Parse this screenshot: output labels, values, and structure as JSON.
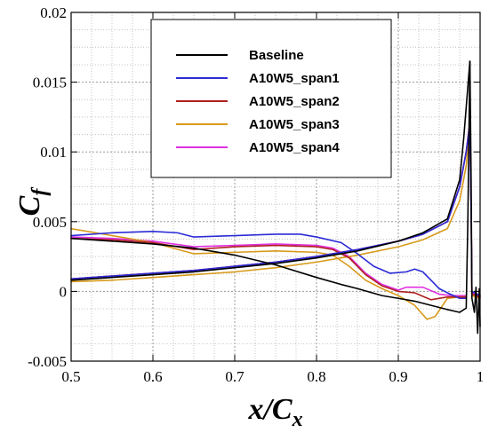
{
  "chart_data": {
    "type": "line",
    "xlabel": {
      "main": "x/C",
      "sub": "x"
    },
    "ylabel": {
      "main": "C",
      "sub": "f"
    },
    "xlim": [
      0.5,
      1.0
    ],
    "ylim": [
      -0.005,
      0.02
    ],
    "x_ticks": [
      0.5,
      0.6,
      0.7,
      0.8,
      0.9,
      1.0
    ],
    "x_tick_labels": [
      "0.5",
      "0.6",
      "0.7",
      "0.8",
      "0.9",
      "1"
    ],
    "y_ticks": [
      -0.005,
      0,
      0.005,
      0.01,
      0.015,
      0.02
    ],
    "y_tick_labels": [
      "-0.005",
      "0",
      "0.005",
      "0.01",
      "0.015",
      "0.02"
    ],
    "grid": true,
    "grid_style": "dotted",
    "legend_position": "top-center",
    "series": [
      {
        "name": "Baseline",
        "color": "#000000",
        "branches": [
          [
            [
              0.5,
              0.0038
            ],
            [
              0.55,
              0.0036
            ],
            [
              0.6,
              0.0034
            ],
            [
              0.65,
              0.0031
            ],
            [
              0.7,
              0.0026
            ],
            [
              0.75,
              0.0019
            ],
            [
              0.8,
              0.001
            ],
            [
              0.83,
              0.0005
            ],
            [
              0.85,
              0.0002
            ],
            [
              0.88,
              -0.0003
            ],
            [
              0.9,
              -0.0005
            ],
            [
              0.92,
              -0.0007
            ],
            [
              0.94,
              -0.001
            ],
            [
              0.96,
              -0.0013
            ],
            [
              0.975,
              -0.0015
            ],
            [
              0.983,
              -0.0012
            ],
            [
              0.985,
              0.005
            ],
            [
              0.9875,
              0.0165
            ]
          ],
          [
            [
              0.5,
              0.0008
            ],
            [
              0.55,
              0.001
            ],
            [
              0.6,
              0.0012
            ],
            [
              0.65,
              0.0014
            ],
            [
              0.7,
              0.0017
            ],
            [
              0.75,
              0.002
            ],
            [
              0.8,
              0.0024
            ],
            [
              0.85,
              0.0029
            ],
            [
              0.9,
              0.0036
            ],
            [
              0.93,
              0.0042
            ],
            [
              0.96,
              0.0052
            ],
            [
              0.975,
              0.008
            ],
            [
              0.98,
              0.011
            ],
            [
              0.9875,
              0.0165
            ],
            [
              0.989,
              0.008
            ],
            [
              0.99,
              -0.0005
            ],
            [
              0.993,
              -0.0015
            ],
            [
              0.995,
              0.0003
            ],
            [
              0.997,
              -0.003
            ],
            [
              0.999,
              0.0002
            ],
            [
              1.0,
              -0.0025
            ]
          ]
        ]
      },
      {
        "name": "A10W5_span1",
        "color": "#2b2bd6",
        "branches": [
          [
            [
              0.5,
              0.004
            ],
            [
              0.55,
              0.0042
            ],
            [
              0.6,
              0.0043
            ],
            [
              0.63,
              0.0042
            ],
            [
              0.65,
              0.0039
            ],
            [
              0.7,
              0.004
            ],
            [
              0.75,
              0.0041
            ],
            [
              0.78,
              0.0041
            ],
            [
              0.8,
              0.0039
            ],
            [
              0.83,
              0.0035
            ],
            [
              0.85,
              0.0027
            ],
            [
              0.87,
              0.0018
            ],
            [
              0.89,
              0.0013
            ],
            [
              0.91,
              0.0014
            ],
            [
              0.92,
              0.0016
            ],
            [
              0.93,
              0.0014
            ],
            [
              0.94,
              0.0008
            ],
            [
              0.95,
              0.0002
            ],
            [
              0.96,
              -0.0001
            ],
            [
              0.975,
              -0.0005
            ],
            [
              0.983,
              -0.0005
            ]
          ],
          [
            [
              0.5,
              0.0009
            ],
            [
              0.55,
              0.0011
            ],
            [
              0.6,
              0.0013
            ],
            [
              0.65,
              0.0015
            ],
            [
              0.7,
              0.0018
            ],
            [
              0.75,
              0.0021
            ],
            [
              0.8,
              0.0025
            ],
            [
              0.85,
              0.003
            ],
            [
              0.9,
              0.0036
            ],
            [
              0.93,
              0.0041
            ],
            [
              0.96,
              0.005
            ],
            [
              0.975,
              0.0075
            ],
            [
              0.983,
              0.01
            ],
            [
              0.9875,
              0.012
            ],
            [
              0.989,
              0.006
            ],
            [
              0.99,
              0.0
            ],
            [
              1.0,
              -0.0003
            ]
          ]
        ]
      },
      {
        "name": "A10W5_span2",
        "color": "#b02020",
        "branches": [
          [
            [
              0.5,
              0.0038
            ],
            [
              0.55,
              0.0037
            ],
            [
              0.6,
              0.0035
            ],
            [
              0.65,
              0.003
            ],
            [
              0.7,
              0.0032
            ],
            [
              0.75,
              0.0033
            ],
            [
              0.8,
              0.0032
            ],
            [
              0.82,
              0.003
            ],
            [
              0.84,
              0.0024
            ],
            [
              0.86,
              0.0012
            ],
            [
              0.88,
              0.0004
            ],
            [
              0.9,
              0.0
            ],
            [
              0.92,
              -0.0001
            ],
            [
              0.94,
              -0.0006
            ],
            [
              0.96,
              -0.0004
            ],
            [
              0.975,
              -0.0004
            ],
            [
              0.983,
              -0.0004
            ]
          ],
          [
            [
              0.5,
              0.0009
            ],
            [
              0.55,
              0.0011
            ],
            [
              0.6,
              0.0013
            ],
            [
              0.65,
              0.0015
            ],
            [
              0.7,
              0.0018
            ],
            [
              0.75,
              0.0021
            ],
            [
              0.8,
              0.0025
            ],
            [
              0.85,
              0.003
            ],
            [
              0.9,
              0.0036
            ],
            [
              0.93,
              0.0041
            ],
            [
              0.96,
              0.005
            ],
            [
              0.975,
              0.0075
            ],
            [
              0.983,
              0.01
            ],
            [
              0.9875,
              0.0121
            ],
            [
              0.989,
              0.006
            ],
            [
              0.99,
              -0.0002
            ],
            [
              1.0,
              -0.0004
            ]
          ]
        ]
      },
      {
        "name": "A10W5_span3",
        "color": "#d89a1a",
        "branches": [
          [
            [
              0.5,
              0.0045
            ],
            [
              0.55,
              0.004
            ],
            [
              0.6,
              0.0035
            ],
            [
              0.65,
              0.0027
            ],
            [
              0.7,
              0.0028
            ],
            [
              0.75,
              0.0029
            ],
            [
              0.8,
              0.0028
            ],
            [
              0.82,
              0.0026
            ],
            [
              0.84,
              0.0018
            ],
            [
              0.86,
              0.0008
            ],
            [
              0.88,
              0.0002
            ],
            [
              0.9,
              -0.0003
            ],
            [
              0.92,
              -0.001
            ],
            [
              0.935,
              -0.002
            ],
            [
              0.945,
              -0.0018
            ],
            [
              0.96,
              -0.0005
            ],
            [
              0.975,
              -0.0004
            ],
            [
              0.983,
              -0.0004
            ]
          ],
          [
            [
              0.5,
              0.0007
            ],
            [
              0.55,
              0.0008
            ],
            [
              0.6,
              0.001
            ],
            [
              0.65,
              0.0012
            ],
            [
              0.7,
              0.0014
            ],
            [
              0.75,
              0.0017
            ],
            [
              0.8,
              0.0021
            ],
            [
              0.85,
              0.0026
            ],
            [
              0.9,
              0.0032
            ],
            [
              0.93,
              0.0037
            ],
            [
              0.96,
              0.0045
            ],
            [
              0.975,
              0.0065
            ],
            [
              0.983,
              0.009
            ],
            [
              0.9875,
              0.0118
            ],
            [
              0.989,
              0.006
            ],
            [
              0.99,
              -0.0003
            ],
            [
              1.0,
              -0.0005
            ]
          ]
        ]
      },
      {
        "name": "A10W5_span4",
        "color": "#e030e0",
        "branches": [
          [
            [
              0.5,
              0.0039
            ],
            [
              0.55,
              0.0038
            ],
            [
              0.6,
              0.0036
            ],
            [
              0.65,
              0.0032
            ],
            [
              0.7,
              0.0033
            ],
            [
              0.75,
              0.0034
            ],
            [
              0.8,
              0.0033
            ],
            [
              0.82,
              0.0031
            ],
            [
              0.84,
              0.0025
            ],
            [
              0.86,
              0.0013
            ],
            [
              0.88,
              0.0005
            ],
            [
              0.9,
              0.0001
            ],
            [
              0.91,
              0.0003
            ],
            [
              0.93,
              0.0003
            ],
            [
              0.95,
              -0.0002
            ],
            [
              0.965,
              -0.0003
            ],
            [
              0.975,
              -0.0003
            ],
            [
              0.983,
              -0.0003
            ]
          ],
          [
            [
              0.5,
              0.0009
            ],
            [
              0.55,
              0.0011
            ],
            [
              0.6,
              0.0013
            ],
            [
              0.65,
              0.0015
            ],
            [
              0.7,
              0.0018
            ],
            [
              0.75,
              0.0021
            ],
            [
              0.8,
              0.0025
            ],
            [
              0.85,
              0.003
            ],
            [
              0.9,
              0.0036
            ],
            [
              0.93,
              0.0041
            ],
            [
              0.96,
              0.005
            ],
            [
              0.975,
              0.0075
            ],
            [
              0.983,
              0.01
            ],
            [
              0.9875,
              0.0122
            ],
            [
              0.989,
              0.006
            ],
            [
              0.99,
              -0.0001
            ],
            [
              1.0,
              -0.0003
            ]
          ]
        ]
      }
    ]
  }
}
